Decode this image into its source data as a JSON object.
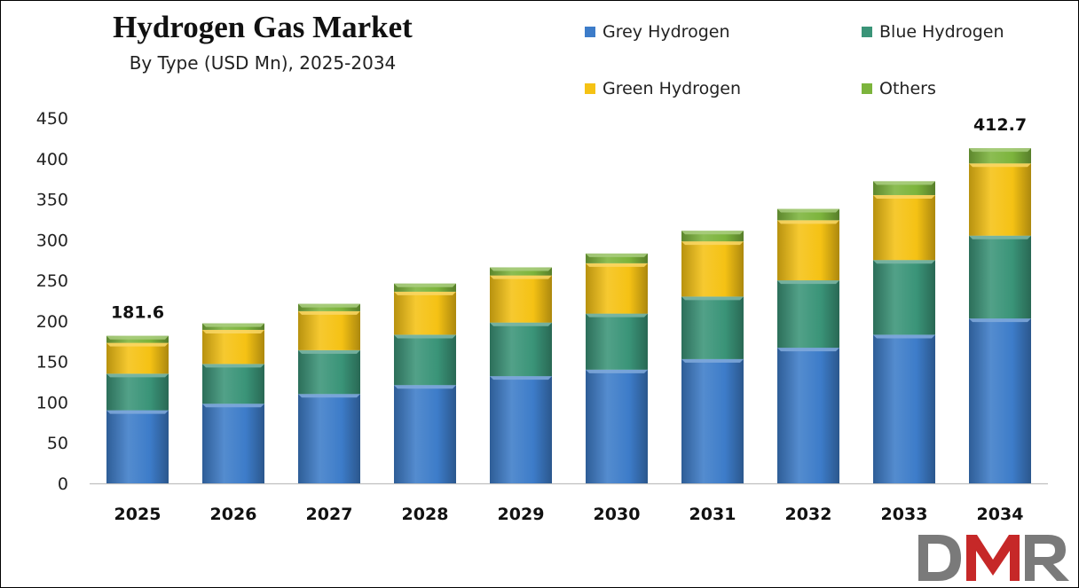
{
  "chart_data": {
    "type": "bar",
    "stacked": true,
    "title": "Hydrogen Gas Market",
    "subtitle": "By Type (USD Mn), 2025-2034",
    "categories": [
      "2025",
      "2026",
      "2027",
      "2028",
      "2029",
      "2030",
      "2031",
      "2032",
      "2033",
      "2034"
    ],
    "series": [
      {
        "name": "Grey Hydrogen",
        "color": "#3d7cc9",
        "values": [
          90,
          98,
          110,
          121,
          132,
          140,
          153,
          167,
          183,
          203
        ]
      },
      {
        "name": "Blue Hydrogen",
        "color": "#3a9478",
        "values": [
          45,
          49,
          54,
          62,
          66,
          69,
          77,
          83,
          92,
          102
        ]
      },
      {
        "name": "Green Hydrogen",
        "color": "#f5c214",
        "values": [
          38,
          42,
          48,
          53,
          58,
          62,
          68,
          74,
          80,
          89
        ]
      },
      {
        "name": "Others",
        "color": "#7cb43c",
        "values": [
          8.6,
          8,
          9,
          10,
          10,
          12,
          13,
          14,
          17,
          18.7
        ]
      }
    ],
    "data_labels": [
      {
        "category": "2025",
        "text": "181.6"
      },
      {
        "category": "2034",
        "text": "412.7"
      }
    ],
    "ylim": [
      0,
      450
    ],
    "yticks": [
      0,
      50,
      100,
      150,
      200,
      250,
      300,
      350,
      400,
      450
    ],
    "xlabel": "",
    "ylabel": "",
    "grid": false,
    "legend": "top-right"
  },
  "logo": {
    "text": "DMR",
    "colors": [
      "#7a7a7a",
      "#c62828",
      "#7a7a7a"
    ]
  }
}
